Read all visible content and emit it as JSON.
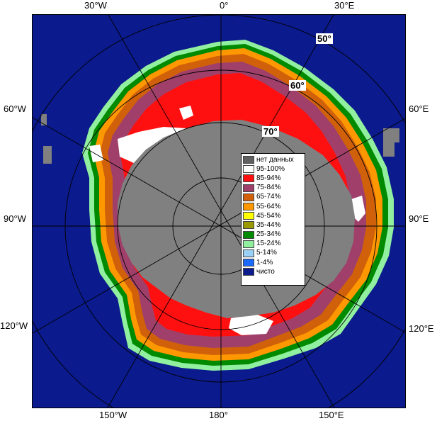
{
  "map": {
    "projection": "polar-stereographic-south",
    "ocean_color": "#0b1a8c",
    "land_color": "#808080",
    "no_data_color": "#808080"
  },
  "labels": {
    "lon_top_left": "30°W",
    "lon_top_center": "0°",
    "lon_top_right": "30°E",
    "lon_left_60": "60°W",
    "lon_right_60": "60°E",
    "lon_left_90": "90°W",
    "lon_right_90": "90°E",
    "lon_left_120": "120°W",
    "lon_right_120": "120°E",
    "lon_bottom_left": "150°W",
    "lon_bottom_center": "180°",
    "lon_bottom_right": "150°E",
    "lat_50": "50°",
    "lat_60": "60°",
    "lat_70": "70°"
  },
  "legend": {
    "items": [
      {
        "label": "нет данных",
        "color": "#606060"
      },
      {
        "label": "95-100%",
        "color": "#ffffff"
      },
      {
        "label": "85-94%",
        "color": "#ff1010"
      },
      {
        "label": "75-84%",
        "color": "#a0406a"
      },
      {
        "label": "65-74%",
        "color": "#d0600a"
      },
      {
        "label": "55-64%",
        "color": "#ff9800"
      },
      {
        "label": "45-54%",
        "color": "#ffff00"
      },
      {
        "label": "35-44%",
        "color": "#9a9a00"
      },
      {
        "label": "25-34%",
        "color": "#008a00"
      },
      {
        "label": "15-24%",
        "color": "#90f0a0"
      },
      {
        "label": "5-14%",
        "color": "#9ad0f5"
      },
      {
        "label": "1-4%",
        "color": "#1a6aff"
      },
      {
        "label": "чисто",
        "color": "#0b1a8c"
      }
    ]
  }
}
